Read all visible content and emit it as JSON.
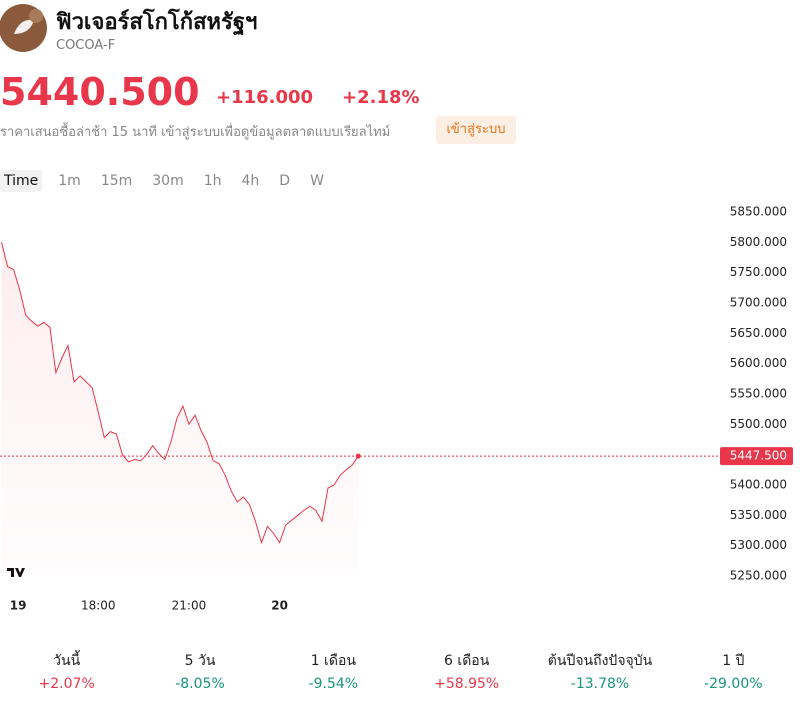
{
  "header": {
    "title": "ฟิวเจอร์สโกโก้สหรัฐฯ",
    "symbol": "COCOA-F",
    "price": "5440.500",
    "change": "+116.000",
    "change_percent": "+2.18%",
    "delay_note": "ราคาเสนอซื้อล่าช้า 15 นาที เข้าสู่ระบบเพื่อดูข้อมูลตลาดแบบเรียลไทม์",
    "login_button": "เข้าสู่ระบบ"
  },
  "tabs": [
    "Time",
    "1m",
    "15m",
    "30m",
    "1h",
    "4h",
    "D",
    "W"
  ],
  "chart_data": {
    "type": "line",
    "color": "#e8374a",
    "x": [
      14.8,
      15.0,
      15.2,
      15.4,
      15.6,
      15.8,
      16.0,
      16.2,
      16.4,
      16.6,
      16.8,
      17.0,
      17.2,
      17.4,
      17.6,
      17.8,
      18.0,
      18.2,
      18.4,
      18.6,
      18.8,
      19.0,
      19.2,
      19.4,
      19.6,
      19.8,
      20.0,
      20.2,
      20.4,
      20.6,
      20.8,
      21.0,
      21.2,
      21.4,
      21.6,
      21.8,
      22.0,
      22.2,
      22.4,
      22.6,
      22.8,
      23.0,
      23.2,
      23.4,
      23.6,
      23.8,
      24.0,
      24.2,
      24.4,
      24.6,
      24.8,
      25.0,
      25.2,
      25.4,
      25.6,
      25.8,
      26.0,
      26.2,
      26.4,
      26.6
    ],
    "values": [
      5800,
      5760,
      5755,
      5722,
      5680,
      5670,
      5662,
      5668,
      5660,
      5585,
      5610,
      5630,
      5570,
      5580,
      5570,
      5560,
      5520,
      5478,
      5488,
      5484,
      5450,
      5438,
      5442,
      5440,
      5450,
      5465,
      5452,
      5442,
      5470,
      5510,
      5530,
      5500,
      5515,
      5490,
      5470,
      5440,
      5435,
      5416,
      5390,
      5372,
      5380,
      5368,
      5340,
      5305,
      5332,
      5320,
      5305,
      5334,
      5342,
      5350,
      5358,
      5365,
      5358,
      5340,
      5395,
      5400,
      5416,
      5425,
      5433,
      5447.5
    ],
    "xlim": [
      14.75,
      38.5
    ],
    "xticks": [
      {
        "value": 15.35,
        "label": "19"
      },
      {
        "value": 18,
        "label": "18:00"
      },
      {
        "value": 21,
        "label": "21:00"
      },
      {
        "value": 24,
        "label": "20"
      }
    ],
    "ylim": [
      5250,
      5850
    ],
    "yticks": [
      {
        "value": 5250,
        "label": "5250.000"
      },
      {
        "value": 5300,
        "label": "5300.000"
      },
      {
        "value": 5350,
        "label": "5350.000"
      },
      {
        "value": 5400,
        "label": "5400.000"
      },
      {
        "value": 5450,
        "label": "5450.000"
      },
      {
        "value": 5500,
        "label": "5500.000"
      },
      {
        "value": 5550,
        "label": "5550.000"
      },
      {
        "value": 5600,
        "label": "5600.000"
      },
      {
        "value": 5650,
        "label": "5650.000"
      },
      {
        "value": 5700,
        "label": "5700.000"
      },
      {
        "value": 5750,
        "label": "5750.000"
      },
      {
        "value": 5800,
        "label": "5800.000"
      },
      {
        "value": 5850,
        "label": "5850.000"
      }
    ],
    "last_price": {
      "value": 5447.5,
      "label": "5447.500"
    }
  },
  "performance": [
    {
      "period": "วันนี้",
      "change": "+2.07%",
      "color": "#e8374a"
    },
    {
      "period": "5 วัน",
      "change": "-8.05%",
      "color": "#16967a"
    },
    {
      "period": "1 เดือน",
      "change": "-9.54%",
      "color": "#16967a"
    },
    {
      "period": "6 เดือน",
      "change": "+58.95%",
      "color": "#e8374a"
    },
    {
      "period": "ต้นปีจนถึงปัจจุบัน",
      "change": "-13.78%",
      "color": "#16967a"
    },
    {
      "period": "1 ปี",
      "change": "-29.00%",
      "color": "#16967a"
    }
  ]
}
